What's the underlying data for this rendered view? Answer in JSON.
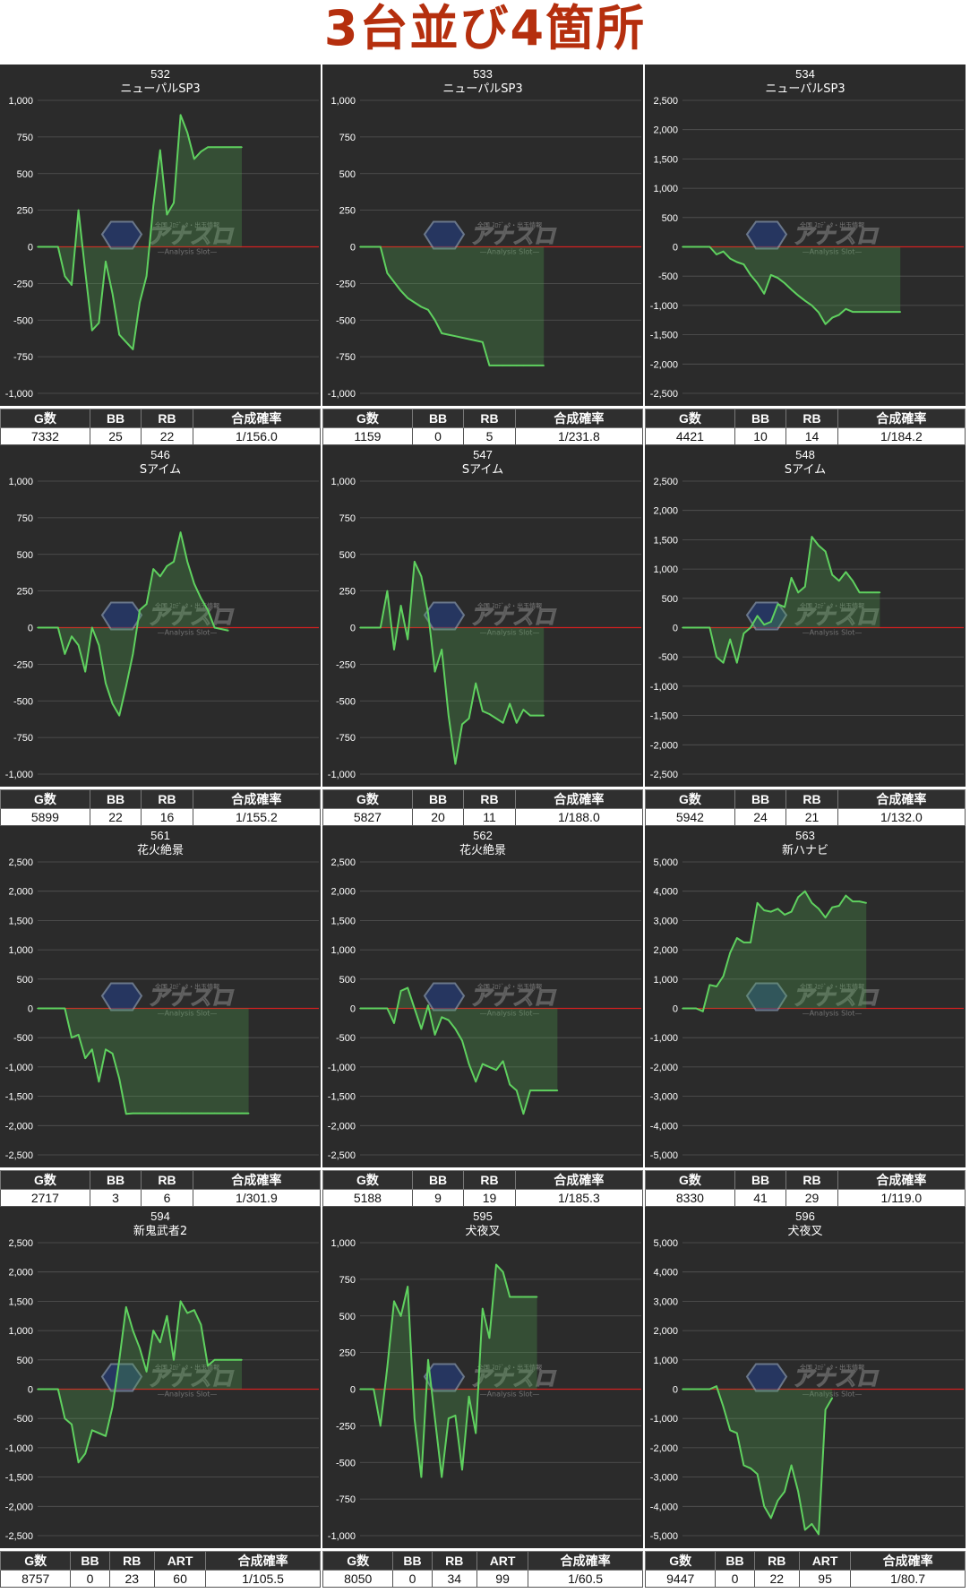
{
  "page": {
    "title": "3台並び4箇所",
    "watermark": {
      "brand": "アナスロ",
      "subtitle": "—Analysis Slot—",
      "tagline": "全国 ｽﾛﾃﾞｰﾀ・出玉情報"
    }
  },
  "colors": {
    "chart_bg": "#2b2b2b",
    "grid": "#555555",
    "zero_line": "#d22020",
    "line": "#5fd15f",
    "fill": "rgba(80,170,80,0.28)",
    "text": "#ffffff",
    "title": "#b52f0e"
  },
  "chart_data": [
    {
      "type": "area",
      "machine_no": "532",
      "model": "ニューパルSP3",
      "ylim": [
        -1000,
        1000
      ],
      "yticks": [
        1000,
        750,
        500,
        250,
        0,
        -250,
        -500,
        -750,
        -1000
      ],
      "ytick_labels": [
        "1,000",
        "750",
        "500",
        "250",
        "0",
        "-250",
        "-500",
        "-750",
        "-1,000"
      ],
      "values": [
        0,
        0,
        0,
        0,
        -200,
        -260,
        250,
        -170,
        -570,
        -520,
        -100,
        -320,
        -600,
        -650,
        -700,
        -380,
        -200,
        280,
        660,
        220,
        300,
        900,
        780,
        600,
        650,
        680,
        680,
        680,
        680,
        680,
        680
      ],
      "stats": {
        "headers": [
          "G数",
          "BB",
          "RB",
          "合成確率"
        ],
        "values": [
          "7332",
          "25",
          "22",
          "1/156.0"
        ]
      }
    },
    {
      "type": "area",
      "machine_no": "533",
      "model": "ニューパルSP3",
      "ylim": [
        -1000,
        1000
      ],
      "yticks": [
        1000,
        750,
        500,
        250,
        0,
        -250,
        -500,
        -750,
        -1000
      ],
      "ytick_labels": [
        "1,000",
        "750",
        "500",
        "250",
        "0",
        "-250",
        "-500",
        "-750",
        "-1,000"
      ],
      "values": [
        0,
        0,
        0,
        0,
        -180,
        -240,
        -300,
        -350,
        -380,
        -410,
        -430,
        -500,
        -590,
        -600,
        -610,
        -620,
        -630,
        -640,
        -650,
        -810,
        -810,
        -810,
        -810,
        -810,
        -810,
        -810,
        -810,
        -810
      ],
      "stats": {
        "headers": [
          "G数",
          "BB",
          "RB",
          "合成確率"
        ],
        "values": [
          "1159",
          "0",
          "5",
          "1/231.8"
        ]
      }
    },
    {
      "type": "area",
      "machine_no": "534",
      "model": "ニューパルSP3",
      "ylim": [
        -2500,
        2500
      ],
      "yticks": [
        2500,
        2000,
        1500,
        1000,
        500,
        0,
        -500,
        -1000,
        -1500,
        -2000,
        -2500
      ],
      "ytick_labels": [
        "2,500",
        "2,000",
        "1,500",
        "1,000",
        "500",
        "0",
        "-500",
        "-1,000",
        "-1,500",
        "-2,000",
        "-2,500"
      ],
      "values": [
        0,
        0,
        0,
        0,
        0,
        -130,
        -80,
        -200,
        -260,
        -300,
        -480,
        -620,
        -800,
        -480,
        -530,
        -620,
        -730,
        -830,
        -920,
        -1000,
        -1120,
        -1320,
        -1210,
        -1160,
        -1060,
        -1110,
        -1110,
        -1110,
        -1110,
        -1110,
        -1110,
        -1110,
        -1110
      ],
      "stats": {
        "headers": [
          "G数",
          "BB",
          "RB",
          "合成確率"
        ],
        "values": [
          "4421",
          "10",
          "14",
          "1/184.2"
        ]
      }
    },
    {
      "type": "area",
      "machine_no": "546",
      "model": "Sアイム",
      "ylim": [
        -1000,
        1000
      ],
      "yticks": [
        1000,
        750,
        500,
        250,
        0,
        -250,
        -500,
        -750,
        -1000
      ],
      "ytick_labels": [
        "1,000",
        "750",
        "500",
        "250",
        "0",
        "-250",
        "-500",
        "-750",
        "-1,000"
      ],
      "values": [
        0,
        0,
        0,
        0,
        -180,
        -60,
        -120,
        -300,
        0,
        -120,
        -380,
        -520,
        -600,
        -400,
        -180,
        120,
        160,
        400,
        350,
        420,
        450,
        650,
        450,
        300,
        200,
        120,
        0,
        -10,
        -20
      ],
      "stats": {
        "headers": [
          "G数",
          "BB",
          "RB",
          "合成確率"
        ],
        "values": [
          "5899",
          "22",
          "16",
          "1/155.2"
        ]
      }
    },
    {
      "type": "area",
      "machine_no": "547",
      "model": "Sアイム",
      "ylim": [
        -1000,
        1000
      ],
      "yticks": [
        1000,
        750,
        500,
        250,
        0,
        -250,
        -500,
        -750,
        -1000
      ],
      "ytick_labels": [
        "1,000",
        "750",
        "500",
        "250",
        "0",
        "-250",
        "-500",
        "-750",
        "-1,000"
      ],
      "values": [
        0,
        0,
        0,
        0,
        250,
        -150,
        150,
        -80,
        450,
        350,
        100,
        -300,
        -150,
        -600,
        -930,
        -660,
        -620,
        -380,
        -570,
        -590,
        -620,
        -650,
        -520,
        -650,
        -560,
        -600,
        -600,
        -600
      ],
      "stats": {
        "headers": [
          "G数",
          "BB",
          "RB",
          "合成確率"
        ],
        "values": [
          "5827",
          "20",
          "11",
          "1/188.0"
        ]
      }
    },
    {
      "type": "area",
      "machine_no": "548",
      "model": "Sアイム",
      "ylim": [
        -2500,
        2500
      ],
      "yticks": [
        2500,
        2000,
        1500,
        1000,
        500,
        0,
        -500,
        -1000,
        -1500,
        -2000,
        -2500
      ],
      "ytick_labels": [
        "2,500",
        "2,000",
        "1,500",
        "1,000",
        "500",
        "0",
        "-500",
        "-1,000",
        "-1,500",
        "-2,000",
        "-2,500"
      ],
      "values": [
        0,
        0,
        0,
        0,
        0,
        -500,
        -600,
        -200,
        -600,
        -100,
        0,
        200,
        50,
        100,
        400,
        350,
        850,
        600,
        700,
        1550,
        1400,
        1300,
        900,
        800,
        950,
        800,
        600,
        600,
        600,
        600
      ],
      "stats": {
        "headers": [
          "G数",
          "BB",
          "RB",
          "合成確率"
        ],
        "values": [
          "5942",
          "24",
          "21",
          "1/132.0"
        ]
      }
    },
    {
      "type": "area",
      "machine_no": "561",
      "model": "花火絶景",
      "ylim": [
        -2500,
        2500
      ],
      "yticks": [
        2500,
        2000,
        1500,
        1000,
        500,
        0,
        -500,
        -1000,
        -1500,
        -2000,
        -2500
      ],
      "ytick_labels": [
        "2,500",
        "2,000",
        "1,500",
        "1,000",
        "500",
        "0",
        "-500",
        "-1,000",
        "-1,500",
        "-2,000",
        "-2,500"
      ],
      "values": [
        0,
        0,
        0,
        0,
        0,
        -500,
        -450,
        -850,
        -700,
        -1250,
        -700,
        -770,
        -1200,
        -1800,
        -1790,
        -1790,
        -1790,
        -1790,
        -1790,
        -1790,
        -1790,
        -1790,
        -1790,
        -1790,
        -1790,
        -1790,
        -1790,
        -1790,
        -1790,
        -1790,
        -1790,
        -1790
      ],
      "stats": {
        "headers": [
          "G数",
          "BB",
          "RB",
          "合成確率"
        ],
        "values": [
          "2717",
          "3",
          "6",
          "1/301.9"
        ]
      }
    },
    {
      "type": "area",
      "machine_no": "562",
      "model": "花火絶景",
      "ylim": [
        -2500,
        2500
      ],
      "yticks": [
        2500,
        2000,
        1500,
        1000,
        500,
        0,
        -500,
        -1000,
        -1500,
        -2000,
        -2500
      ],
      "ytick_labels": [
        "2,500",
        "2,000",
        "1,500",
        "1,000",
        "500",
        "0",
        "-500",
        "-1,000",
        "-1,500",
        "-2,000",
        "-2,500"
      ],
      "values": [
        0,
        0,
        0,
        0,
        0,
        -250,
        300,
        350,
        0,
        -350,
        50,
        -450,
        -150,
        -200,
        -350,
        -550,
        -950,
        -1250,
        -950,
        -1000,
        -1050,
        -900,
        -1300,
        -1400,
        -1800,
        -1400,
        -1400,
        -1400,
        -1400,
        -1400
      ],
      "stats": {
        "headers": [
          "G数",
          "BB",
          "RB",
          "合成確率"
        ],
        "values": [
          "5188",
          "9",
          "19",
          "1/185.3"
        ]
      }
    },
    {
      "type": "area",
      "machine_no": "563",
      "model": "新ハナビ",
      "ylim": [
        -5000,
        5000
      ],
      "yticks": [
        5000,
        4000,
        3000,
        2000,
        1000,
        0,
        -1000,
        -2000,
        -3000,
        -4000,
        -5000
      ],
      "ytick_labels": [
        "5,000",
        "4,000",
        "3,000",
        "2,000",
        "1,000",
        "0",
        "-1,000",
        "-2,000",
        "-3,000",
        "-4,000",
        "-5,000"
      ],
      "values": [
        0,
        0,
        0,
        -100,
        800,
        750,
        1100,
        1900,
        2400,
        2250,
        2250,
        3600,
        3350,
        3300,
        3400,
        3200,
        3300,
        3800,
        4000,
        3600,
        3400,
        3100,
        3450,
        3500,
        3850,
        3650,
        3650,
        3600
      ],
      "stats": {
        "headers": [
          "G数",
          "BB",
          "RB",
          "合成確率"
        ],
        "values": [
          "8330",
          "41",
          "29",
          "1/119.0"
        ]
      }
    },
    {
      "type": "area",
      "machine_no": "594",
      "model": "新鬼武者2",
      "ylim": [
        -2500,
        2500
      ],
      "yticks": [
        2500,
        2000,
        1500,
        1000,
        500,
        0,
        -500,
        -1000,
        -1500,
        -2000,
        -2500
      ],
      "ytick_labels": [
        "2,500",
        "2,000",
        "1,500",
        "1,000",
        "500",
        "0",
        "-500",
        "-1,000",
        "-1,500",
        "-2,000",
        "-2,500"
      ],
      "values": [
        0,
        0,
        0,
        0,
        -500,
        -600,
        -1250,
        -1100,
        -700,
        -750,
        -800,
        -300,
        500,
        1400,
        1000,
        700,
        300,
        1000,
        800,
        1250,
        500,
        1500,
        1300,
        1350,
        1100,
        400,
        500,
        500,
        500,
        500,
        500
      ],
      "stats": {
        "headers": [
          "G数",
          "BB",
          "RB",
          "ART",
          "合成確率"
        ],
        "values": [
          "8757",
          "0",
          "23",
          "60",
          "1/105.5"
        ]
      }
    },
    {
      "type": "area",
      "machine_no": "595",
      "model": "犬夜叉",
      "ylim": [
        -1000,
        1000
      ],
      "yticks": [
        1000,
        750,
        500,
        250,
        0,
        -250,
        -500,
        -750,
        -1000
      ],
      "ytick_labels": [
        "1,000",
        "750",
        "500",
        "250",
        "0",
        "-250",
        "-500",
        "-750",
        "-1,000"
      ],
      "values": [
        0,
        0,
        0,
        -250,
        150,
        600,
        500,
        700,
        -200,
        -600,
        200,
        -200,
        -600,
        -200,
        -180,
        -550,
        -50,
        -300,
        550,
        350,
        850,
        800,
        630,
        630,
        630,
        630,
        630
      ],
      "stats": {
        "headers": [
          "G数",
          "BB",
          "RB",
          "ART",
          "合成確率"
        ],
        "values": [
          "8050",
          "0",
          "34",
          "99",
          "1/60.5"
        ]
      }
    },
    {
      "type": "area",
      "machine_no": "596",
      "model": "犬夜叉",
      "ylim": [
        -5000,
        5000
      ],
      "yticks": [
        5000,
        4000,
        3000,
        2000,
        1000,
        0,
        -1000,
        -2000,
        -3000,
        -4000,
        -5000
      ],
      "ytick_labels": [
        "5,000",
        "4,000",
        "3,000",
        "2,000",
        "1,000",
        "0",
        "-1,000",
        "-2,000",
        "-3,000",
        "-4,000",
        "-5,000"
      ],
      "values": [
        0,
        0,
        0,
        0,
        0,
        100,
        -600,
        -1400,
        -1500,
        -2600,
        -2700,
        -2900,
        -4000,
        -4400,
        -3800,
        -3500,
        -2600,
        -3500,
        -4800,
        -4600,
        -4950,
        -700,
        -300
      ],
      "stats": {
        "headers": [
          "G数",
          "BB",
          "RB",
          "ART",
          "合成確率"
        ],
        "values": [
          "9447",
          "0",
          "22",
          "95",
          "1/80.7"
        ]
      }
    }
  ]
}
